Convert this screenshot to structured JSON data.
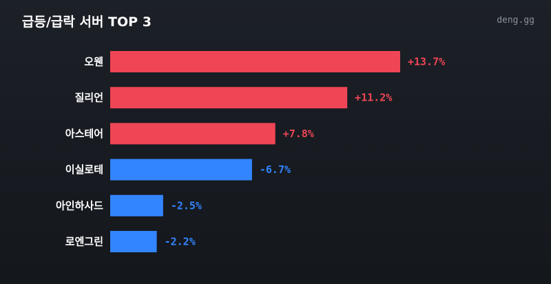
{
  "header": {
    "title": "급등/급락 서버 TOP 3",
    "brand": "deng.gg"
  },
  "colors": {
    "positive": "#f04555",
    "negative": "#3385ff"
  },
  "chart_data": {
    "type": "bar",
    "orientation": "horizontal",
    "title": "급등/급락 서버 TOP 3",
    "categories": [
      "오웬",
      "질리언",
      "아스테어",
      "이실로테",
      "아인하사드",
      "로엔그린"
    ],
    "values": [
      13.7,
      11.2,
      7.8,
      -6.7,
      -2.5,
      -2.2
    ],
    "value_labels": [
      "+13.7%",
      "+11.2%",
      "+7.8%",
      "-6.7%",
      "-2.5%",
      "-2.2%"
    ],
    "unit": "%",
    "grid": false
  }
}
